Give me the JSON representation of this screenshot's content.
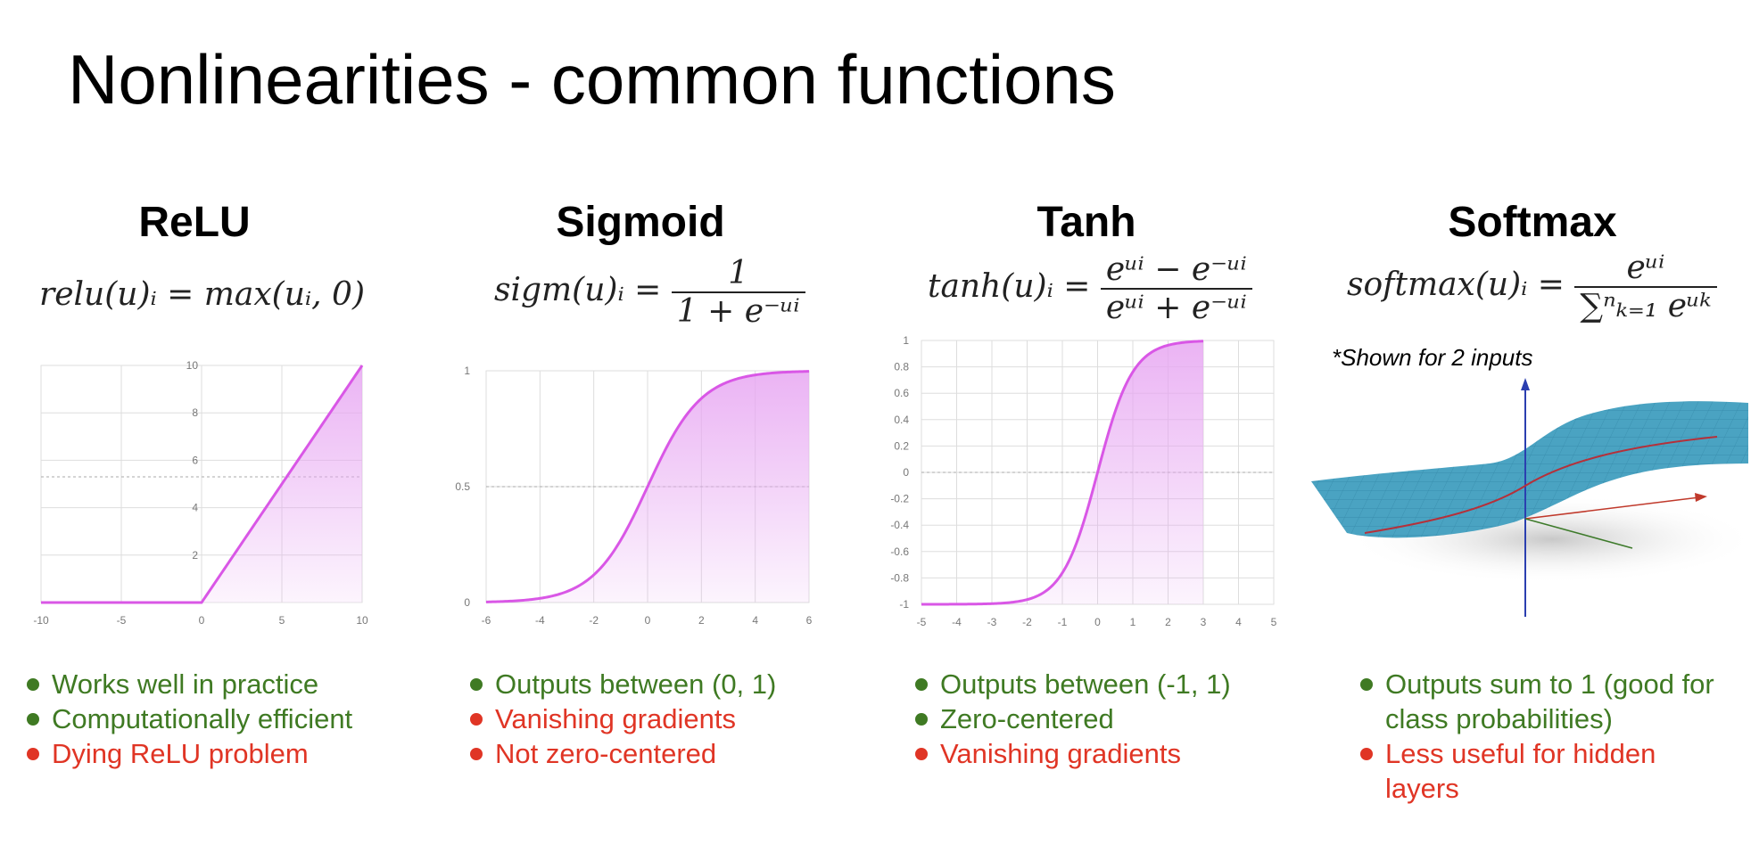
{
  "title": "Nonlinearities - common functions",
  "columns": [
    {
      "name": "ReLU",
      "formula_lhs": "relu(u)ᵢ = max(uᵢ, 0)",
      "bullets": [
        {
          "text": "Works well in practice",
          "kind": "pro"
        },
        {
          "text": "Computationally efficient",
          "kind": "pro"
        },
        {
          "text": "Dying ReLU problem",
          "kind": "con"
        }
      ]
    },
    {
      "name": "Sigmoid",
      "formula_lhs": "sigm(u)ᵢ =",
      "formula_num": "1",
      "formula_den": "1 + e⁻ᵘⁱ",
      "bullets": [
        {
          "text": "Outputs between (0, 1)",
          "kind": "pro"
        },
        {
          "text": "Vanishing gradients",
          "kind": "con"
        },
        {
          "text": "Not zero-centered",
          "kind": "con"
        }
      ]
    },
    {
      "name": "Tanh",
      "formula_lhs": "tanh(u)ᵢ =",
      "formula_num": "eᵘⁱ − e⁻ᵘⁱ",
      "formula_den": "eᵘⁱ + e⁻ᵘⁱ",
      "bullets": [
        {
          "text": "Outputs between (-1, 1)",
          "kind": "pro"
        },
        {
          "text": "Zero-centered",
          "kind": "pro"
        },
        {
          "text": "Vanishing gradients",
          "kind": "con"
        }
      ]
    },
    {
      "name": "Softmax",
      "formula_lhs": "softmax(u)ᵢ =",
      "formula_num": "eᵘⁱ",
      "formula_den": "∑ⁿₖ₌₁ eᵘᵏ",
      "note": "*Shown for 2 inputs",
      "bullets": [
        {
          "text": "Outputs sum to 1 (good for class probabilities)",
          "kind": "pro"
        },
        {
          "text": "Less useful for hidden layers",
          "kind": "con"
        }
      ]
    }
  ],
  "colors": {
    "curve": "#d957e6",
    "fill": "#e7a6f2",
    "grid": "#dddddd",
    "pro": "#3f7a23",
    "con": "#e03525",
    "surface": "#4aa3c2"
  },
  "chart_data": [
    {
      "type": "line",
      "function": "relu",
      "x": [
        -10,
        -5,
        0,
        5,
        10
      ],
      "y": [
        0,
        0,
        0,
        5,
        10
      ],
      "xticks": [
        "-10",
        "-5",
        "0",
        "5",
        "10"
      ],
      "yticks": [
        "2",
        "4",
        "6",
        "8",
        "10"
      ],
      "xlim": [
        -10,
        10
      ],
      "ylim": [
        0,
        10
      ]
    },
    {
      "type": "line",
      "function": "sigmoid",
      "x": [
        -6,
        -4,
        -2,
        0,
        2,
        4,
        6
      ],
      "y": [
        0.0025,
        0.018,
        0.119,
        0.5,
        0.881,
        0.982,
        0.9975
      ],
      "xticks": [
        "-6",
        "-4",
        "-2",
        "0",
        "2",
        "4",
        "6"
      ],
      "yticks": [
        "0",
        "0.5",
        "1"
      ],
      "xlim": [
        -6,
        6
      ],
      "ylim": [
        0,
        1
      ]
    },
    {
      "type": "line",
      "function": "tanh",
      "x": [
        -5,
        -4,
        -3,
        -2,
        -1,
        0,
        1,
        2,
        3
      ],
      "y": [
        -1.0,
        -0.999,
        -0.995,
        -0.964,
        -0.762,
        0,
        0.762,
        0.964,
        0.995
      ],
      "xticks": [
        "-5",
        "-4",
        "-3",
        "-2",
        "-1",
        "0",
        "1",
        "2",
        "3",
        "4",
        "5"
      ],
      "yticks": [
        "1",
        "0.8",
        "0.6",
        "0.4",
        "0.2",
        "0",
        "-0.2",
        "-0.4",
        "-0.6",
        "-0.8",
        "-1"
      ],
      "xlim": [
        -5,
        5
      ],
      "ylim": [
        -1,
        1
      ]
    },
    {
      "type": "surface",
      "function": "softmax",
      "inputs": 2
    }
  ]
}
